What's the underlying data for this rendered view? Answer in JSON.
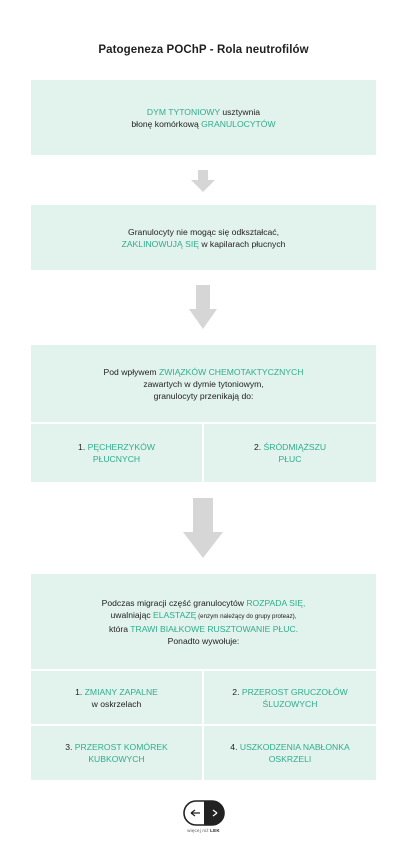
{
  "title": "Patogeneza POChP - Rola neutrofilów",
  "step1": {
    "hl1": "DYM TYTONIOWY",
    "t1": " usztywnia",
    "t2": "błonę komórkową ",
    "hl2": "GRANULOCYTÓW"
  },
  "step2": {
    "t1": "Granulocyty nie mogąc się odkształcać,",
    "hl1": "ZAKLINOWUJĄ SIĘ",
    "t2": " w kapilarach płucnych"
  },
  "step3": {
    "t1": "Pod wpływem ",
    "hl1": "ZWIĄZKÓW CHEMOTAKTYCZNYCH",
    "t2": "zawartych w dymie tytoniowym,",
    "t3": "granulocyty przenikają do:",
    "items": [
      {
        "num": "1. ",
        "hl": "PĘCHERZYKÓW",
        "hl2": "PŁUCNYCH"
      },
      {
        "num": "2. ",
        "hl": "ŚRÓDMIĄŻSZU",
        "hl2": "PŁUC"
      }
    ]
  },
  "step4": {
    "t1": "Podczas migracji część granulocytów ",
    "hl1": "ROZPADA SIĘ,",
    "t2": "uwalniając ",
    "hl2": "ELASTAZĘ",
    "small": " (enzym należący do grupy proteaz),",
    "t3": "która ",
    "hl3": "TRAWI BIAŁKOWE RUSZTOWANIE PŁUC.",
    "t4": "Ponadto wywołuje:",
    "items": [
      {
        "num": "1. ",
        "hl": "ZMIANY ZAPALNE",
        "rest": "w oskrzelach"
      },
      {
        "num": "2. ",
        "hl": "PRZEROST GRUCZOŁÓW",
        "hl2": "ŚLUZOWYCH"
      },
      {
        "num": "3. ",
        "hl": "PRZEROST KOMÓREK",
        "hl2": "KUBKOWYCH"
      },
      {
        "num": "4. ",
        "hl": "USZKODZENIA NABŁONKA",
        "hl2": "OSKRZELI"
      }
    ]
  },
  "footer": {
    "brand_pre": "więcej niż ",
    "brand": "LEK"
  },
  "colors": {
    "accent": "#2fae8e",
    "box": "#e2f2ec",
    "arrow": "#d6d6d6"
  }
}
